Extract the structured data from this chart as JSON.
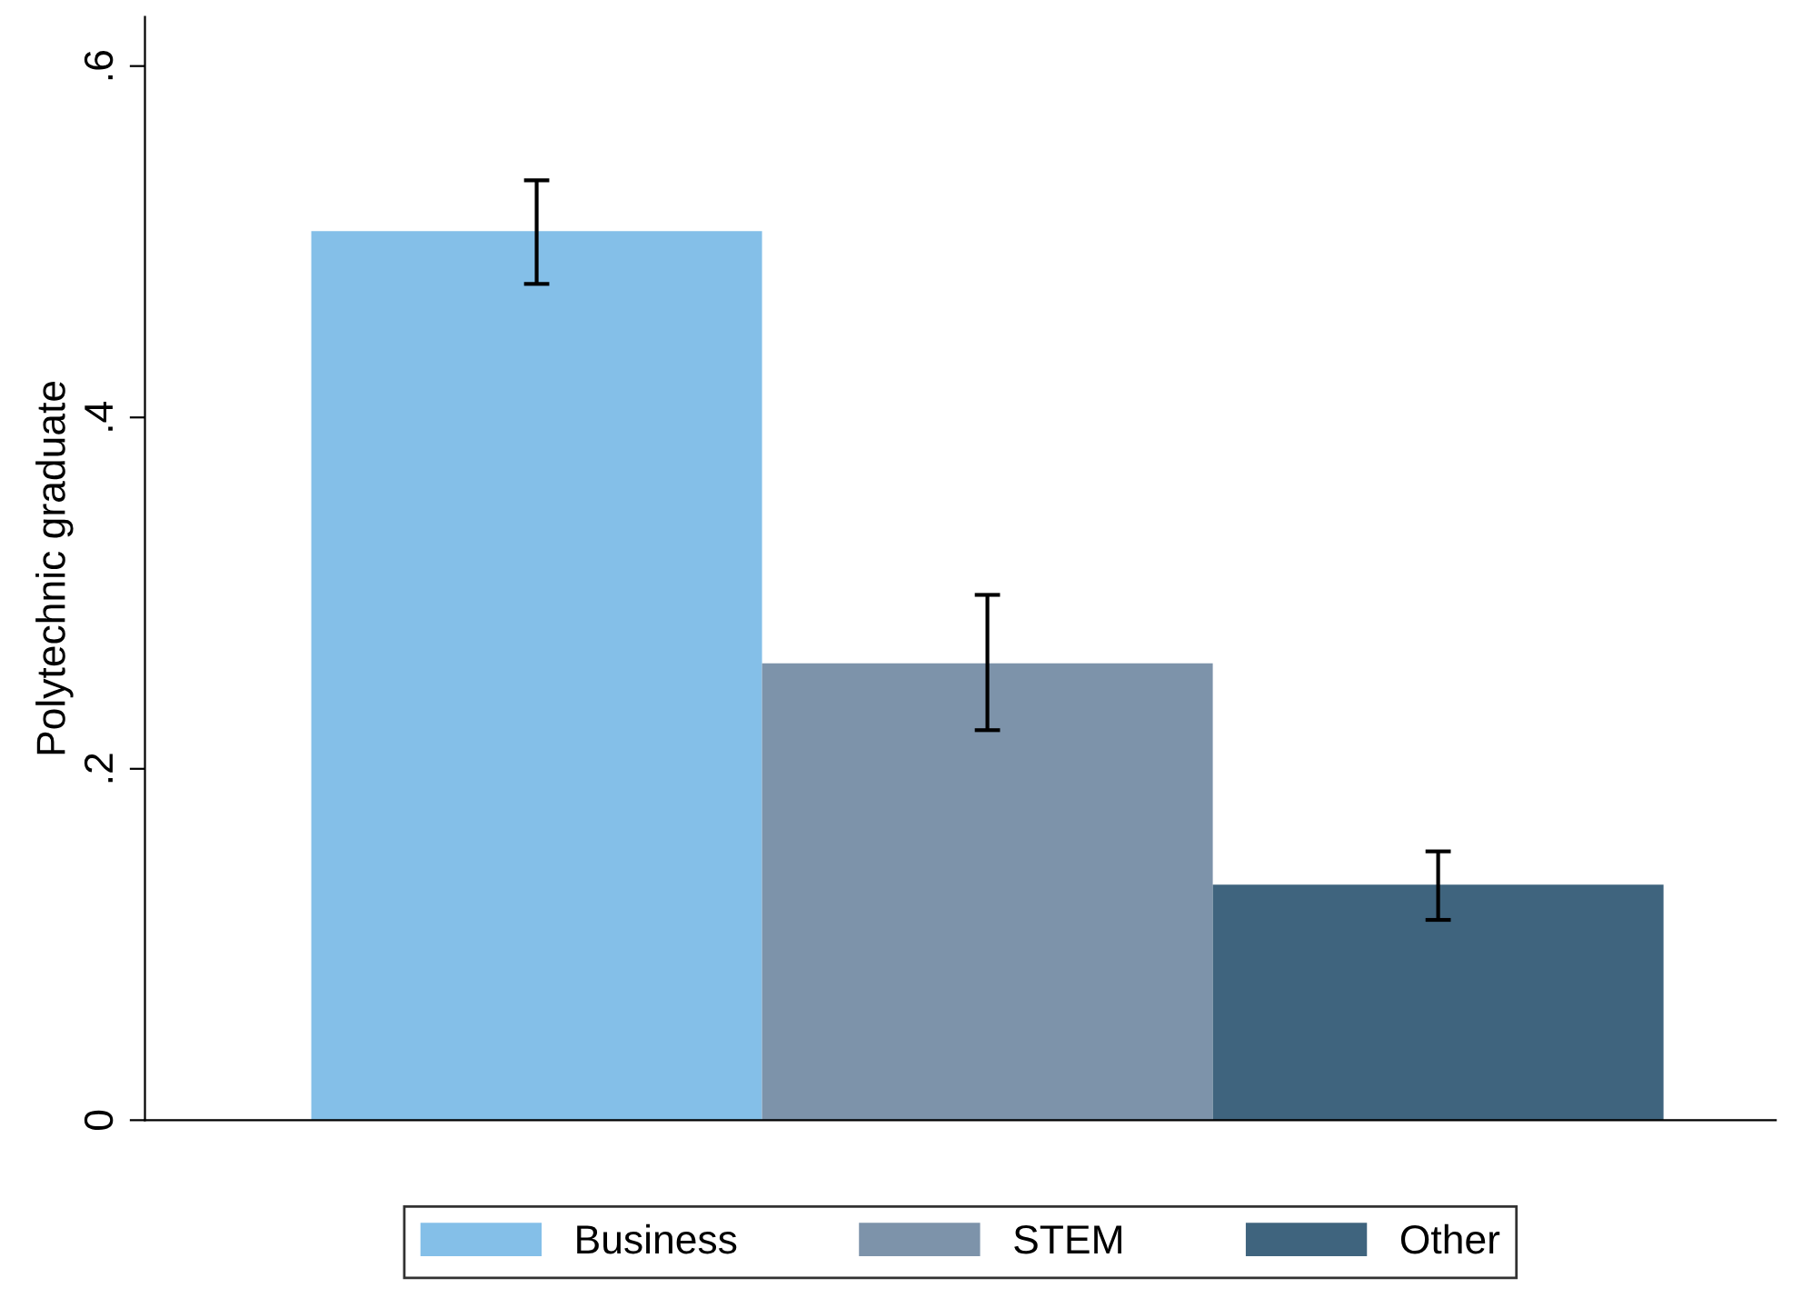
{
  "chart_data": {
    "type": "bar",
    "ylabel": "Polytechnic graduate",
    "categories": [
      null
    ],
    "series": [
      {
        "name": "Business",
        "color": "#84bfe8",
        "values": [
          0.506
        ],
        "errors": [
          [
            0.476,
            0.535
          ]
        ]
      },
      {
        "name": "STEM",
        "color": "#7d93aa",
        "values": [
          0.26
        ],
        "errors": [
          [
            0.222,
            0.299
          ]
        ]
      },
      {
        "name": "Other",
        "color": "#3f647e",
        "values": [
          0.134
        ],
        "errors": [
          [
            0.114,
            0.153
          ]
        ]
      }
    ],
    "ylim": [
      0,
      0.628
    ],
    "yticks": [
      {
        "value": 0,
        "label": "0"
      },
      {
        "value": 0.2,
        "label": ".2"
      },
      {
        "value": 0.4,
        "label": ".4"
      },
      {
        "value": 0.6,
        "label": ".6"
      }
    ],
    "grid": false,
    "legend": "bottom"
  }
}
